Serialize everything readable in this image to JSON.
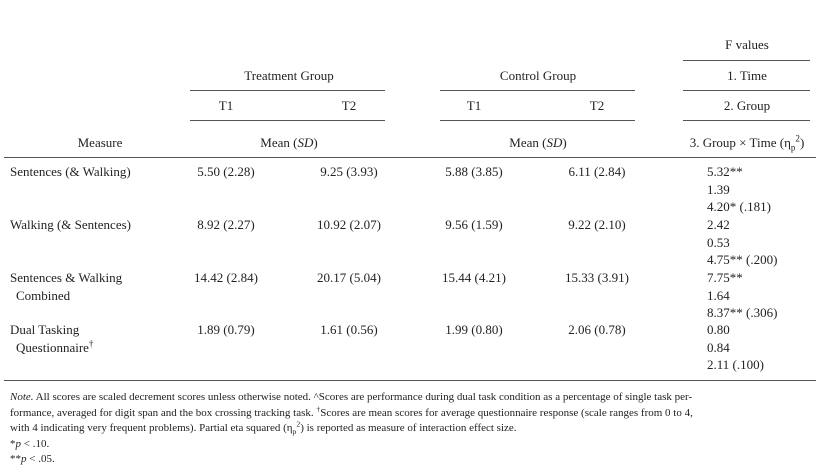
{
  "header": {
    "f_values": "F values",
    "treatment_group": "Treatment Group",
    "control_group": "Control Group",
    "f_time": "1. Time",
    "treatment_t1": "T1",
    "treatment_t2": "T2",
    "control_t1": "T1",
    "control_t2": "T2",
    "f_group": "2. Group",
    "measure": "Measure",
    "treatment_mean": [
      {
        "text": "Mean ("
      },
      {
        "italic": "SD"
      },
      {
        "text": ")"
      }
    ],
    "control_mean": [
      {
        "text": "Mean ("
      },
      {
        "italic": "SD"
      },
      {
        "text": ")"
      }
    ],
    "f_interaction": [
      {
        "text": "3. Group × Time (η"
      },
      {
        "sub": "p"
      },
      {
        "sup": "2"
      },
      {
        "text": ")"
      }
    ]
  },
  "table": {
    "rows": [
      {
        "measure": [
          [
            {
              "text": "Sentences (& Walking)"
            }
          ]
        ],
        "values": [
          "5.50 (2.28)",
          "9.25 (3.93)",
          "5.88 (3.85)",
          "6.11 (2.84)"
        ],
        "f": [
          "5.32**",
          "1.39",
          "4.20* (.181)"
        ]
      },
      {
        "measure": [
          [
            {
              "text": "Walking (& Sentences)"
            }
          ]
        ],
        "values": [
          "8.92 (2.27)",
          "10.92 (2.07)",
          "9.56 (1.59)",
          "9.22 (2.10)"
        ],
        "f": [
          "2.42",
          "0.53",
          "4.75** (.200)"
        ]
      },
      {
        "measure": [
          [
            {
              "text": "Sentences & Walking"
            }
          ],
          [
            {
              "text": "Combined"
            }
          ]
        ],
        "values": [
          "14.42 (2.84)",
          "20.17 (5.04)",
          "15.44 (4.21)",
          "15.33 (3.91)"
        ],
        "f": [
          "7.75**",
          "1.64",
          "8.37** (.306)"
        ]
      },
      {
        "measure": [
          [
            {
              "text": "Dual Tasking"
            }
          ],
          [
            {
              "text": "Questionnaire"
            },
            {
              "sup": "†"
            }
          ]
        ],
        "values": [
          "1.89 (0.79)",
          "1.61 (0.56)",
          "1.99 (0.80)",
          "2.06 (0.78)"
        ],
        "f": [
          "0.80",
          "0.84",
          "2.11 (.100)"
        ]
      }
    ]
  },
  "note": {
    "lines": [
      [
        {
          "italic": "Note."
        },
        {
          "text": " All scores are scaled decrement scores unless otherwise noted. ^Scores are performance during dual task condition as a percentage of single task per-"
        }
      ],
      [
        {
          "text": "formance, averaged for digit span and the box crossing tracking task. "
        },
        {
          "sup": "†"
        },
        {
          "text": "Scores are mean scores for average questionnaire response (scale ranges from 0 to 4,"
        }
      ],
      [
        {
          "text": "with 4 indicating very frequent problems). Partial eta squared (η"
        },
        {
          "sub": "p"
        },
        {
          "sup": "2"
        },
        {
          "text": ") is reported as measure of interaction effect size."
        }
      ],
      [
        {
          "text": "*"
        },
        {
          "italic": "p"
        },
        {
          "text": " < .10."
        }
      ],
      [
        {
          "text": "**"
        },
        {
          "italic": "p"
        },
        {
          "text": " < .05."
        }
      ]
    ]
  }
}
